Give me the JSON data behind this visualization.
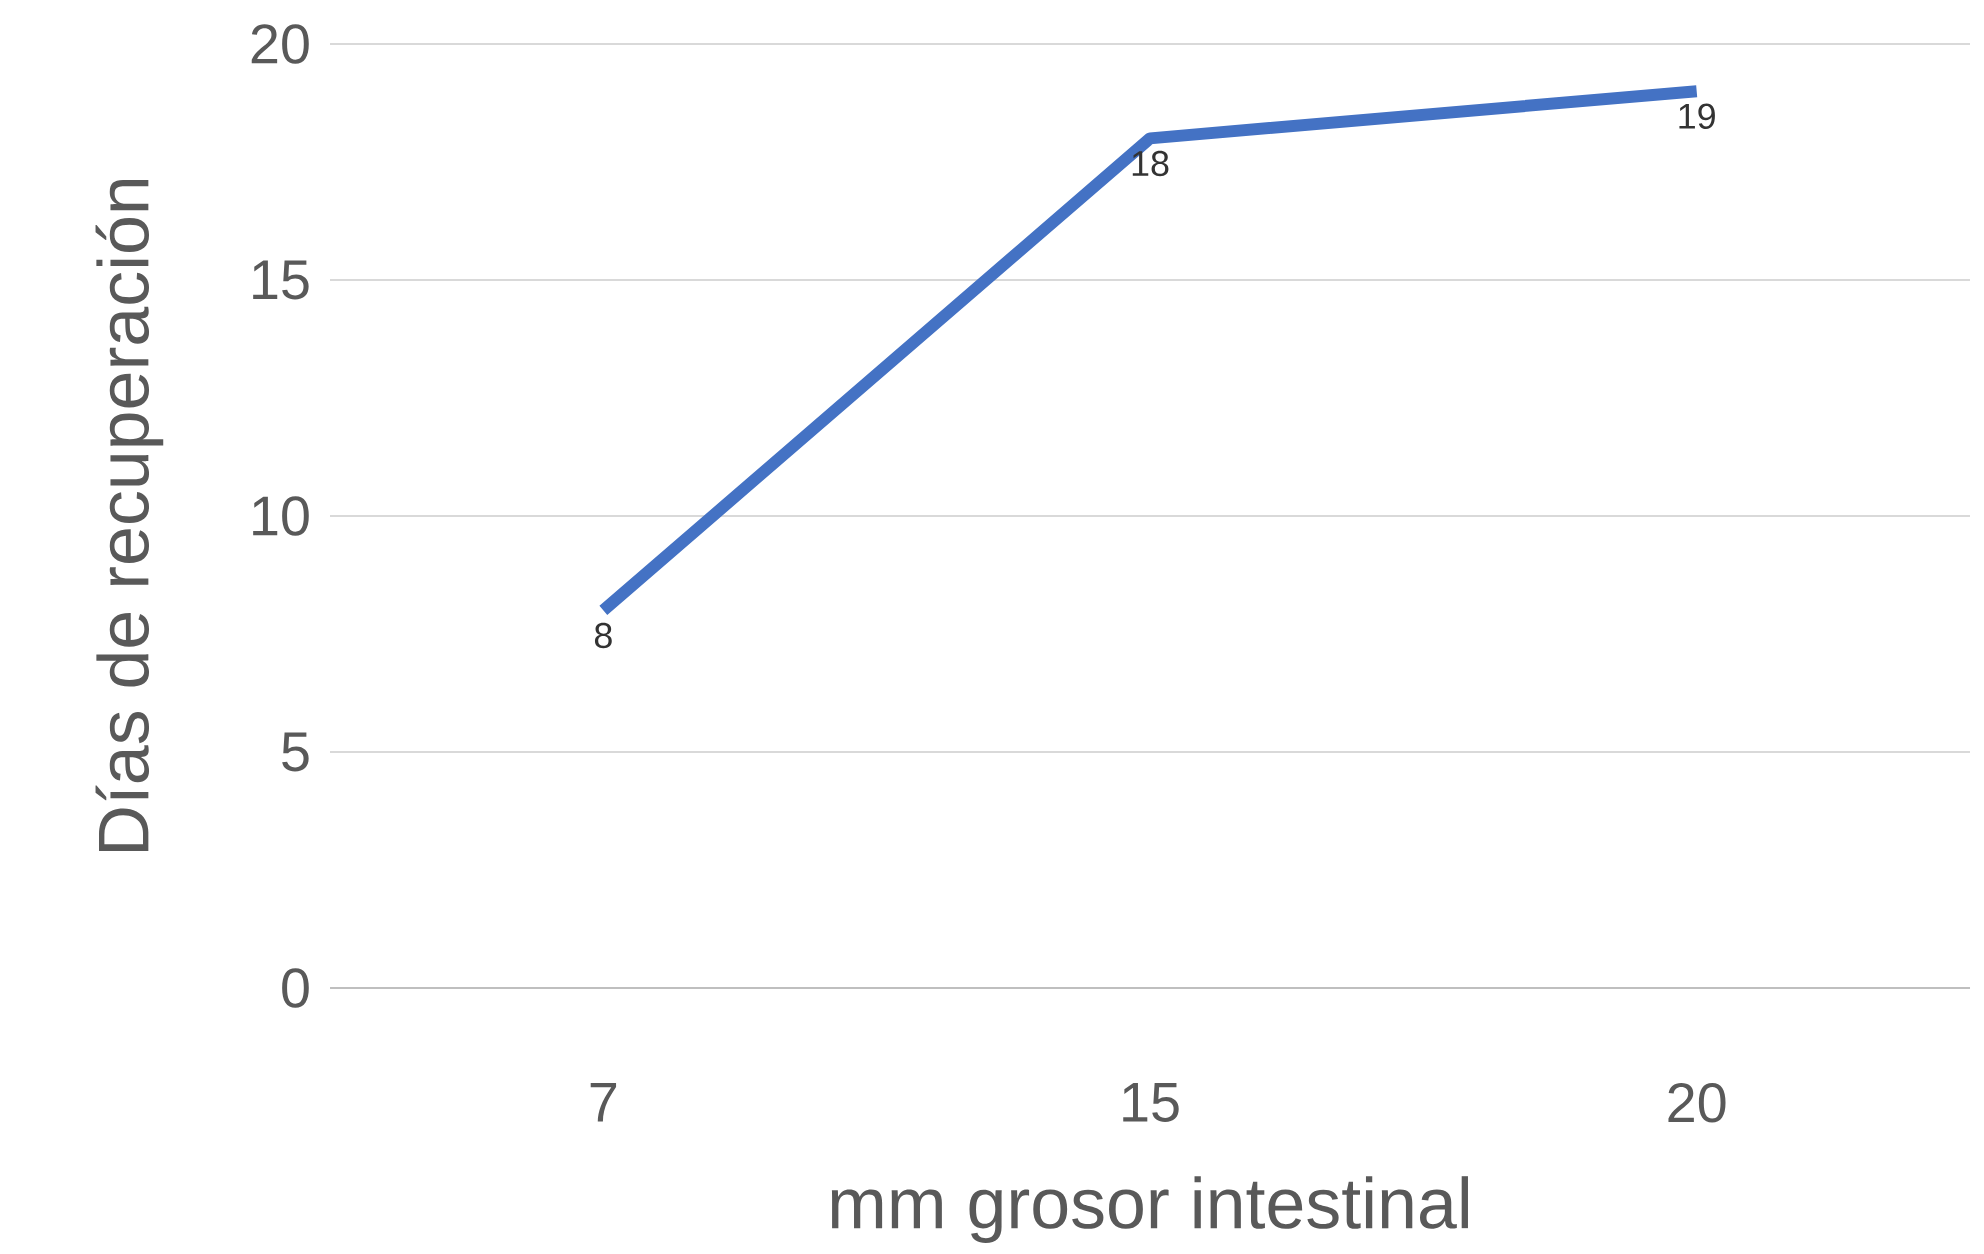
{
  "chart_data": {
    "type": "line",
    "xlabel": "mm grosor intestinal",
    "ylabel": "Días de recuperación",
    "categories": [
      "7",
      "15",
      "20"
    ],
    "series": [
      {
        "color": "#4472c4",
        "values": [
          8,
          18,
          19
        ]
      }
    ],
    "ylim": [
      0,
      20
    ],
    "yticks": [
      0,
      5,
      10,
      15,
      20
    ],
    "grid": "y",
    "data_labels": true,
    "marker": "none",
    "line_style": "solid"
  }
}
